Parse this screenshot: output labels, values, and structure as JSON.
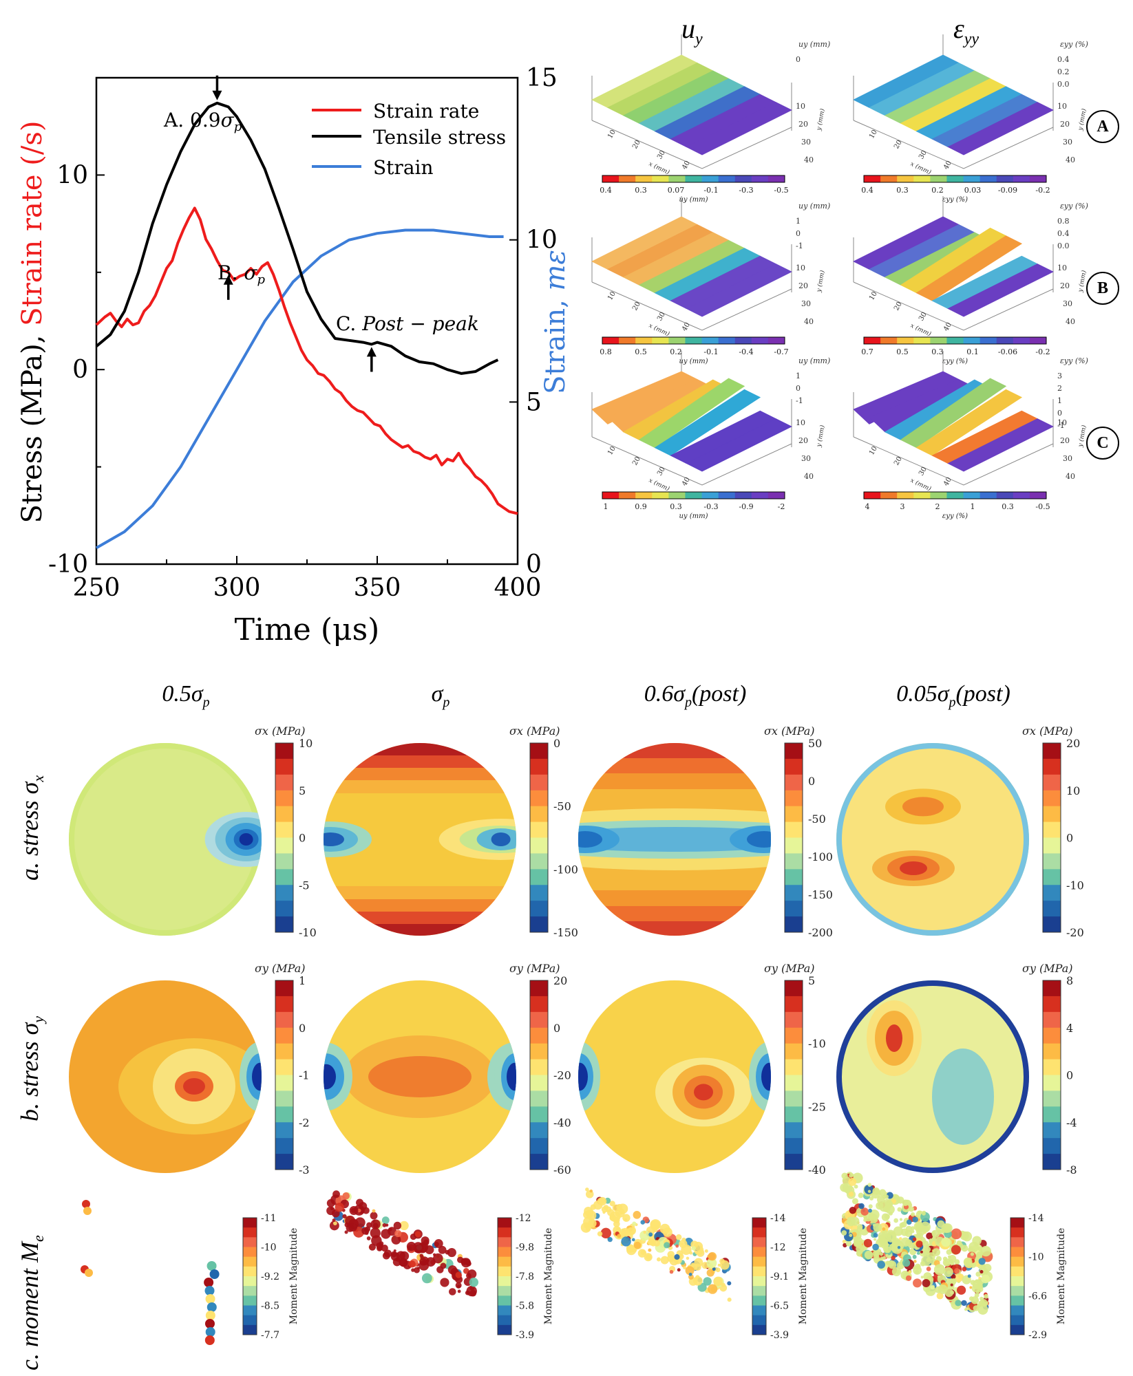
{
  "chart_data": {
    "type": "line",
    "xlabel": "Time (μs)",
    "ylabel_left_stress": "Stress (MPa), ",
    "ylabel_left_rate": "Strain rate (/s)",
    "ylabel_right": "Strain, ",
    "ylabel_right_unit": "mε",
    "xlim": [
      250,
      400
    ],
    "ylim_left": [
      -10,
      15
    ],
    "ylim_right": [
      0,
      15
    ],
    "x_ticks": [
      "250",
      "300",
      "350",
      "400"
    ],
    "y_ticks_left": [
      "-10",
      "0",
      "10"
    ],
    "y_ticks_right": [
      "0",
      "5",
      "10",
      "15"
    ],
    "series": [
      {
        "name": "Strain rate",
        "color": "#ee1c1c",
        "axis": "left",
        "x": [
          250,
          253,
          255,
          257,
          259,
          261,
          263,
          265,
          267,
          269,
          271,
          273,
          275,
          277,
          279,
          281,
          283,
          285,
          287,
          289,
          291,
          293,
          295,
          297,
          299,
          301,
          303,
          305,
          307,
          309,
          311,
          313,
          315,
          317,
          319,
          321,
          323,
          325,
          327,
          329,
          331,
          333,
          335,
          337,
          339,
          341,
          343,
          345,
          347,
          349,
          351,
          353,
          355,
          357,
          359,
          361,
          363,
          365,
          367,
          369,
          371,
          373,
          375,
          377,
          379,
          381,
          383,
          385,
          387,
          389,
          391,
          393,
          395,
          397,
          400
        ],
        "y": [
          2.3,
          2.7,
          2.9,
          2.5,
          2.2,
          2.6,
          2.3,
          2.4,
          3.0,
          3.3,
          3.8,
          4.5,
          5.2,
          5.6,
          6.5,
          7.2,
          7.8,
          8.3,
          7.7,
          6.7,
          6.2,
          5.6,
          5.1,
          5.0,
          4.6,
          4.8,
          4.9,
          5.2,
          4.9,
          5.3,
          5.5,
          4.9,
          4.1,
          3.2,
          2.4,
          1.7,
          1.0,
          0.5,
          0.2,
          -0.2,
          -0.3,
          -0.6,
          -1.0,
          -1.2,
          -1.6,
          -1.9,
          -2.1,
          -2.2,
          -2.5,
          -2.8,
          -2.9,
          -3.3,
          -3.6,
          -3.8,
          -4.0,
          -3.9,
          -4.2,
          -4.3,
          -4.5,
          -4.6,
          -4.4,
          -4.9,
          -4.6,
          -4.7,
          -4.3,
          -4.8,
          -5.1,
          -5.5,
          -5.7,
          -6.0,
          -6.4,
          -6.9,
          -7.1,
          -7.3,
          -7.4
        ]
      },
      {
        "name": "Tensile stress",
        "color": "#000000",
        "axis": "left",
        "x": [
          250,
          255,
          260,
          265,
          270,
          275,
          280,
          285,
          290,
          293,
          297,
          300,
          305,
          310,
          315,
          320,
          325,
          330,
          335,
          340,
          345,
          348,
          350,
          355,
          360,
          365,
          370,
          375,
          380,
          385,
          390,
          393
        ],
        "y": [
          1.2,
          1.8,
          3.0,
          5.0,
          7.5,
          9.5,
          11.2,
          12.6,
          13.5,
          13.7,
          13.5,
          13.0,
          11.8,
          10.3,
          8.3,
          6.2,
          4.0,
          2.6,
          1.6,
          1.5,
          1.4,
          1.3,
          1.4,
          1.2,
          0.7,
          0.4,
          0.3,
          0.0,
          -0.2,
          -0.1,
          0.3,
          0.5
        ]
      },
      {
        "name": "Strain",
        "color": "#3c7dd8",
        "axis": "right",
        "x": [
          250,
          260,
          270,
          280,
          290,
          300,
          310,
          320,
          330,
          340,
          350,
          360,
          370,
          380,
          390,
          395
        ],
        "y": [
          0.5,
          1.0,
          1.8,
          3.0,
          4.5,
          6.0,
          7.5,
          8.7,
          9.5,
          10.0,
          10.2,
          10.3,
          10.3,
          10.2,
          10.1,
          10.1
        ]
      }
    ],
    "annotations": [
      {
        "label": "A. 0.9σp",
        "x": 293
      },
      {
        "label": "B. σp",
        "x": 297
      },
      {
        "label": "C. Post − peak",
        "x": 348
      }
    ]
  },
  "panel3d": {
    "col_uy": "u",
    "col_uy_sub": "y",
    "col_eyy": "ε",
    "col_eyy_sub": "yy",
    "rows": [
      {
        "badge": "A",
        "uy_ticks": [
          "0.4",
          "0.3",
          "0.07",
          "-0.1",
          "-0.3",
          "-0.5"
        ],
        "eyy_ticks": [
          "0.4",
          "0.3",
          "0.2",
          "0.03",
          "-0.09",
          "-0.2"
        ],
        "uy_z": [
          "0"
        ],
        "eyy_z": [
          "0.4",
          "0.2",
          "0.0"
        ]
      },
      {
        "badge": "B",
        "uy_ticks": [
          "0.8",
          "0.5",
          "0.2",
          "-0.1",
          "-0.4",
          "-0.7"
        ],
        "eyy_ticks": [
          "0.7",
          "0.5",
          "0.3",
          "0.1",
          "-0.06",
          "-0.2"
        ],
        "uy_z": [
          "1",
          "0",
          "-1"
        ],
        "eyy_z": [
          "0.8",
          "0.4",
          "0.0"
        ]
      },
      {
        "badge": "C",
        "uy_ticks": [
          "1",
          "0.9",
          "0.3",
          "-0.3",
          "-0.9",
          "-2"
        ],
        "eyy_ticks": [
          "4",
          "3",
          "2",
          "1",
          "0.3",
          "-0.5"
        ],
        "uy_z": [
          "1",
          "0",
          "-1"
        ],
        "eyy_z": [
          "3",
          "2",
          "1",
          "0",
          "-1"
        ]
      }
    ],
    "uy_cb_label": "u",
    "uy_cb_unit": "(mm)",
    "eyy_cb_label": "ε",
    "eyy_cb_unit": "(%)",
    "x_axis": "x (mm)",
    "y_axis": "y (mm)",
    "x_ticks": [
      "10",
      "20",
      "30",
      "40"
    ],
    "y_ticks": [
      "10",
      "20",
      "30",
      "40"
    ]
  },
  "stress": {
    "col_titles": [
      "0.5σ",
      "σ",
      "0.6σ",
      "0.05σ"
    ],
    "col_suffix": [
      "",
      "",
      "(post)",
      "(post)"
    ],
    "row_a_label": "a. stress σ",
    "row_a_sub": "x",
    "row_b_label": "b. stress σ",
    "row_b_sub": "y",
    "row_c_label": "c. moment M",
    "row_c_sub": "e",
    "sx_unit": "(MPa)",
    "sy_unit": "(MPa)",
    "sx_ticks": [
      [
        "10",
        "5",
        "0",
        "-5",
        "-10"
      ],
      [
        "0",
        "-50",
        "-100",
        "-150"
      ],
      [
        "50",
        "0",
        "-50",
        "-100",
        "-150",
        "-200"
      ],
      [
        "20",
        "10",
        "0",
        "-10",
        "-20"
      ]
    ],
    "sy_ticks": [
      [
        "1",
        "0",
        "-1",
        "-2",
        "-3"
      ],
      [
        "20",
        "0",
        "-20",
        "-40",
        "-60"
      ],
      [
        "5",
        "-10",
        "-25",
        "-40"
      ],
      [
        "8",
        "4",
        "0",
        "-4",
        "-8"
      ]
    ],
    "moment_label": "Moment Magnitude",
    "moment_ticks": [
      [
        "-11",
        "-10",
        "-9.2",
        "-8.5",
        "-7.7"
      ],
      [
        "-12",
        "-9.8",
        "-7.8",
        "-5.8",
        "-3.9"
      ],
      [
        "-14",
        "-12",
        "-9.1",
        "-6.5",
        "-3.9"
      ],
      [
        "-14",
        "-10",
        "-6.6",
        "-2.9"
      ]
    ]
  }
}
